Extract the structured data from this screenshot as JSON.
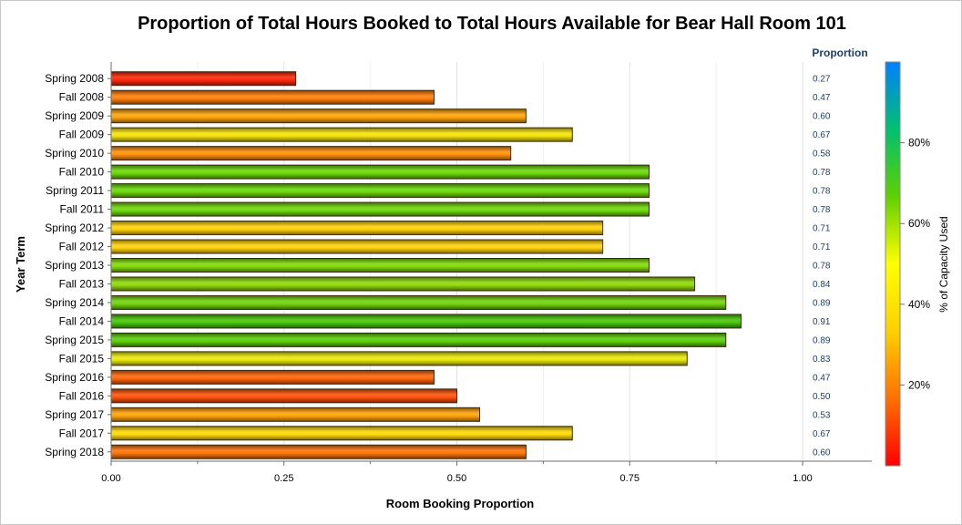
{
  "chart_data": {
    "type": "bar",
    "orientation": "horizontal",
    "title": "Proportion of Total Hours Booked to Total Hours Available for Bear Hall Room 101",
    "xlabel": "Room Booking Proportion",
    "ylabel": "Year Term",
    "xlim": [
      0,
      1.1
    ],
    "xticks": [
      0,
      0.25,
      0.5,
      0.75,
      1.0
    ],
    "xtick_labels": [
      "0.00",
      "0.25",
      "0.50",
      "0.75",
      "1.00"
    ],
    "grid": true,
    "categories": [
      "Spring 2008",
      "Fall 2008",
      "Spring 2009",
      "Fall 2009",
      "Spring 2010",
      "Fall 2010",
      "Spring 2011",
      "Fall 2011",
      "Spring 2012",
      "Fall 2012",
      "Spring 2013",
      "Fall 2013",
      "Spring 2014",
      "Fall 2014",
      "Spring 2015",
      "Fall 2015",
      "Spring 2016",
      "Fall 2016",
      "Spring 2017",
      "Fall 2017",
      "Spring 2018"
    ],
    "values": [
      0.267,
      0.467,
      0.6,
      0.667,
      0.578,
      0.778,
      0.778,
      0.778,
      0.711,
      0.711,
      0.778,
      0.844,
      0.889,
      0.911,
      0.889,
      0.833,
      0.467,
      0.5,
      0.533,
      0.667,
      0.6
    ],
    "value_column_header": "Proportion",
    "value_labels": [
      "0.27",
      "0.47",
      "0.60",
      "0.67",
      "0.58",
      "0.78",
      "0.78",
      "0.78",
      "0.71",
      "0.71",
      "0.78",
      "0.84",
      "0.89",
      "0.91",
      "0.89",
      "0.83",
      "0.47",
      "0.50",
      "0.53",
      "0.67",
      "0.60"
    ],
    "bar_colors": [
      "#ff2000",
      "#ff7a00",
      "#ffa000",
      "#f4e000",
      "#ff8c00",
      "#66d700",
      "#66d700",
      "#66d700",
      "#ffd000",
      "#ffd000",
      "#7ed800",
      "#8cd800",
      "#6cd200",
      "#40c400",
      "#56cc00",
      "#e8e800",
      "#ff6000",
      "#ff4c00",
      "#ffa000",
      "#ffd800",
      "#ff7000"
    ],
    "colorbar": {
      "title": "% of Capacity Used",
      "ticks": [
        20,
        40,
        60,
        80
      ],
      "tick_labels": [
        "20%",
        "40%",
        "60%",
        "80%"
      ],
      "range": [
        0,
        100
      ],
      "colors": [
        "#ff0000",
        "#ff7000",
        "#ffd000",
        "#ffff00",
        "#60d000",
        "#00c070",
        "#0080ff"
      ]
    }
  }
}
